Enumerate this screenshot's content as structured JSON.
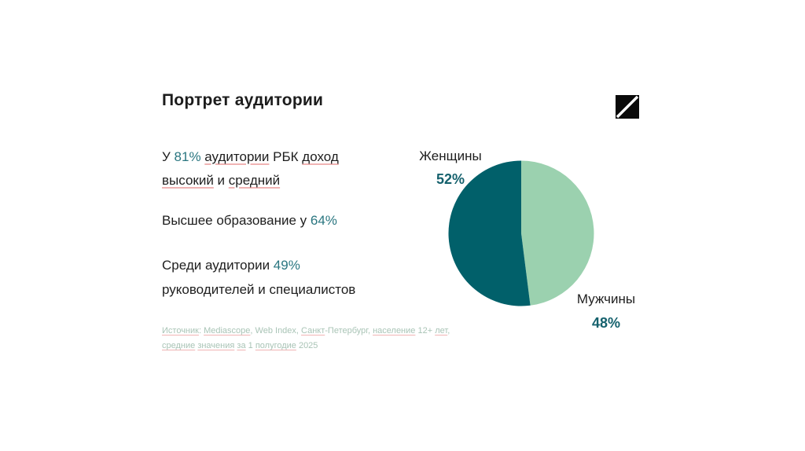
{
  "title": "Портрет аудитории",
  "colors": {
    "title": "#1c1c1c",
    "body": "#1e1e1e",
    "accent": "#2a7680",
    "pct_label": "#15616d",
    "source": "#a9c4b6",
    "spell": "#f0b4b4",
    "logo_bg": "#0a0a0a",
    "logo_slash": "#ffffff"
  },
  "stats": {
    "income": {
      "line1": [
        {
          "t": "У "
        },
        {
          "t": "81%",
          "accent": true
        },
        {
          "t": " "
        },
        {
          "t": "аудитории",
          "spell": true
        },
        {
          "t": " РБК "
        },
        {
          "t": "доход",
          "spell": true
        }
      ],
      "line2": [
        {
          "t": "высокий",
          "spell": true
        },
        {
          "t": " и "
        },
        {
          "t": "средний",
          "spell": true
        }
      ]
    },
    "education": {
      "line1": [
        {
          "t": "Высшее образование у "
        },
        {
          "t": "64%",
          "accent": true
        }
      ]
    },
    "occupation": {
      "line1": [
        {
          "t": "Среди аудитории "
        },
        {
          "t": "49%",
          "accent": true
        }
      ],
      "line2": [
        {
          "t": "руководителей и специалистов"
        }
      ]
    }
  },
  "source": {
    "line1": [
      {
        "t": "Источник",
        "u": true
      },
      {
        "t": ": "
      },
      {
        "t": "Mediascope",
        "u": true
      },
      {
        "t": ", Web Index, "
      },
      {
        "t": "Санкт",
        "u": true
      },
      {
        "t": "-Петербург, "
      },
      {
        "t": "население",
        "u": true
      },
      {
        "t": " 12+ "
      },
      {
        "t": "лет",
        "u": true
      },
      {
        "t": ","
      }
    ],
    "line2": [
      {
        "t": "средние",
        "u": true
      },
      {
        "t": " "
      },
      {
        "t": "значения",
        "u": true
      },
      {
        "t": " "
      },
      {
        "t": "за",
        "u": true
      },
      {
        "t": " 1 "
      },
      {
        "t": "полугодие",
        "u": true
      },
      {
        "t": " 2025"
      }
    ]
  },
  "chart_data": {
    "type": "pie",
    "start_angle_deg": 0,
    "direction": "clockwise",
    "legend_position": "data-labels",
    "slices": [
      {
        "key": "men",
        "label": "Мужчины",
        "value": 48,
        "display": "48%",
        "color": "#9bd1af"
      },
      {
        "key": "women",
        "label": "Женщины",
        "value": 52,
        "display": "52%",
        "color": "#01606a"
      }
    ]
  }
}
